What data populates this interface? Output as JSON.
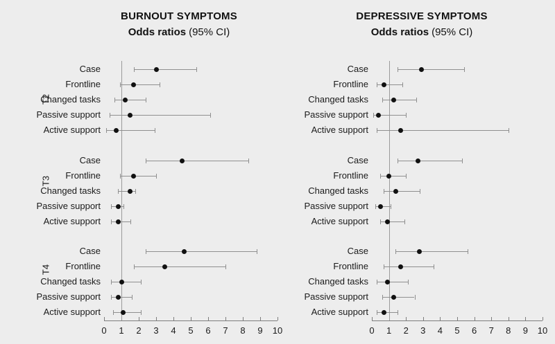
{
  "figure": {
    "background_color": "#ededed",
    "dot_color": "#111111",
    "line_color": "#8f8f8f",
    "text_color": "#1a1a1a"
  },
  "chart_data": [
    {
      "type": "forest",
      "panel": "left",
      "title": "BURNOUT SYMPTOMS",
      "subtitle_bold": "Odds ratios",
      "subtitle_note": "(95% CI)",
      "xlim": [
        0,
        10
      ],
      "x_ticks": [
        0,
        1,
        2,
        3,
        4,
        5,
        6,
        7,
        8,
        9,
        10
      ],
      "reference_line_x": 1,
      "legend": "none",
      "grid": false,
      "groups": [
        {
          "label": "T2",
          "rows": [
            {
              "label": "Case",
              "or": 3.0,
              "ci": [
                1.7,
                5.3
              ]
            },
            {
              "label": "Frontline",
              "or": 1.7,
              "ci": [
                0.9,
                3.2
              ]
            },
            {
              "label": "Changed tasks",
              "or": 1.2,
              "ci": [
                0.6,
                2.4
              ]
            },
            {
              "label": "Passive support",
              "or": 1.5,
              "ci": [
                0.3,
                6.1
              ]
            },
            {
              "label": "Active support",
              "or": 0.7,
              "ci": [
                0.1,
                2.9
              ]
            }
          ]
        },
        {
          "label": "T3",
          "rows": [
            {
              "label": "Case",
              "or": 4.5,
              "ci": [
                2.4,
                8.3
              ]
            },
            {
              "label": "Frontline",
              "or": 1.7,
              "ci": [
                0.9,
                3.0
              ]
            },
            {
              "label": "Changed tasks",
              "or": 1.5,
              "ci": [
                0.8,
                1.8
              ]
            },
            {
              "label": "Passive support",
              "or": 0.8,
              "ci": [
                0.4,
                1.1
              ]
            },
            {
              "label": "Active support",
              "or": 0.8,
              "ci": [
                0.4,
                1.5
              ]
            }
          ]
        },
        {
          "label": "T4",
          "rows": [
            {
              "label": "Case",
              "or": 4.6,
              "ci": [
                2.4,
                8.8
              ]
            },
            {
              "label": "Frontline",
              "or": 3.5,
              "ci": [
                1.7,
                7.0
              ]
            },
            {
              "label": "Changed tasks",
              "or": 1.0,
              "ci": [
                0.4,
                2.1
              ]
            },
            {
              "label": "Passive support",
              "or": 0.8,
              "ci": [
                0.4,
                1.6
              ]
            },
            {
              "label": "Active support",
              "or": 1.1,
              "ci": [
                0.5,
                2.1
              ]
            }
          ]
        }
      ]
    },
    {
      "type": "forest",
      "panel": "right",
      "title": "DEPRESSIVE SYMPTOMS",
      "subtitle_bold": "Odds ratios",
      "subtitle_note": "(95% CI)",
      "xlim": [
        0,
        10
      ],
      "x_ticks": [
        0,
        1,
        2,
        3,
        4,
        5,
        6,
        7,
        8,
        9,
        10
      ],
      "reference_line_x": 1,
      "legend": "none",
      "grid": false,
      "groups": [
        {
          "label": "T2",
          "rows": [
            {
              "label": "Case",
              "or": 2.9,
              "ci": [
                1.5,
                5.4
              ]
            },
            {
              "label": "Frontline",
              "or": 0.7,
              "ci": [
                0.3,
                1.8
              ]
            },
            {
              "label": "Changed tasks",
              "or": 1.3,
              "ci": [
                0.6,
                2.6
              ]
            },
            {
              "label": "Passive support",
              "or": 0.4,
              "ci": [
                0.1,
                2.0
              ]
            },
            {
              "label": "Active support",
              "or": 1.7,
              "ci": [
                0.3,
                8.0
              ]
            }
          ]
        },
        {
          "label": "T3",
          "rows": [
            {
              "label": "Case",
              "or": 2.7,
              "ci": [
                1.5,
                5.3
              ]
            },
            {
              "label": "Frontline",
              "or": 1.0,
              "ci": [
                0.5,
                2.0
              ]
            },
            {
              "label": "Changed tasks",
              "or": 1.4,
              "ci": [
                0.7,
                2.8
              ]
            },
            {
              "label": "Passive support",
              "or": 0.5,
              "ci": [
                0.2,
                1.1
              ]
            },
            {
              "label": "Active support",
              "or": 0.9,
              "ci": [
                0.5,
                1.9
              ]
            }
          ]
        },
        {
          "label": "T4",
          "rows": [
            {
              "label": "Case",
              "or": 2.8,
              "ci": [
                1.4,
                5.6
              ]
            },
            {
              "label": "Frontline",
              "or": 1.7,
              "ci": [
                0.7,
                3.6
              ]
            },
            {
              "label": "Changed tasks",
              "or": 0.9,
              "ci": [
                0.3,
                2.1
              ]
            },
            {
              "label": "Passive support",
              "or": 1.3,
              "ci": [
                0.6,
                2.5
              ]
            },
            {
              "label": "Active support",
              "or": 0.7,
              "ci": [
                0.3,
                1.5
              ]
            }
          ]
        }
      ]
    }
  ]
}
